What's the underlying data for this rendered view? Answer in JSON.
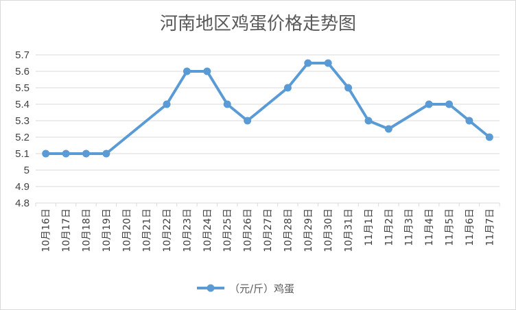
{
  "chart_data": {
    "type": "line",
    "title": "河南地区鸡蛋价格走势图",
    "xlabel": "",
    "ylabel": "",
    "categories": [
      "10月16日",
      "10月17日",
      "10月18日",
      "10月19日",
      "10月20日",
      "10月21日",
      "10月22日",
      "10月23日",
      "10月24日",
      "10月25日",
      "10月26日",
      "10月27日",
      "10月28日",
      "10月29日",
      "10月30日",
      "10月31日",
      "11月1日",
      "11月2日",
      "11月3日",
      "11月4日",
      "11月5日",
      "11月6日",
      "11月7日"
    ],
    "series": [
      {
        "name": "（元/斤）鸡蛋",
        "color": "#5b9bd5",
        "values": [
          5.1,
          5.1,
          5.1,
          5.1,
          null,
          null,
          5.4,
          5.6,
          5.6,
          5.4,
          5.3,
          null,
          5.5,
          5.65,
          5.65,
          5.5,
          5.3,
          5.25,
          null,
          5.4,
          5.4,
          5.3,
          5.2
        ]
      }
    ],
    "ylim": [
      4.8,
      5.7
    ],
    "yticks": [
      "4.8",
      "4.9",
      "5",
      "5.1",
      "5.2",
      "5.3",
      "5.4",
      "5.5",
      "5.6",
      "5.7"
    ],
    "grid": true,
    "legend": "bottom"
  }
}
